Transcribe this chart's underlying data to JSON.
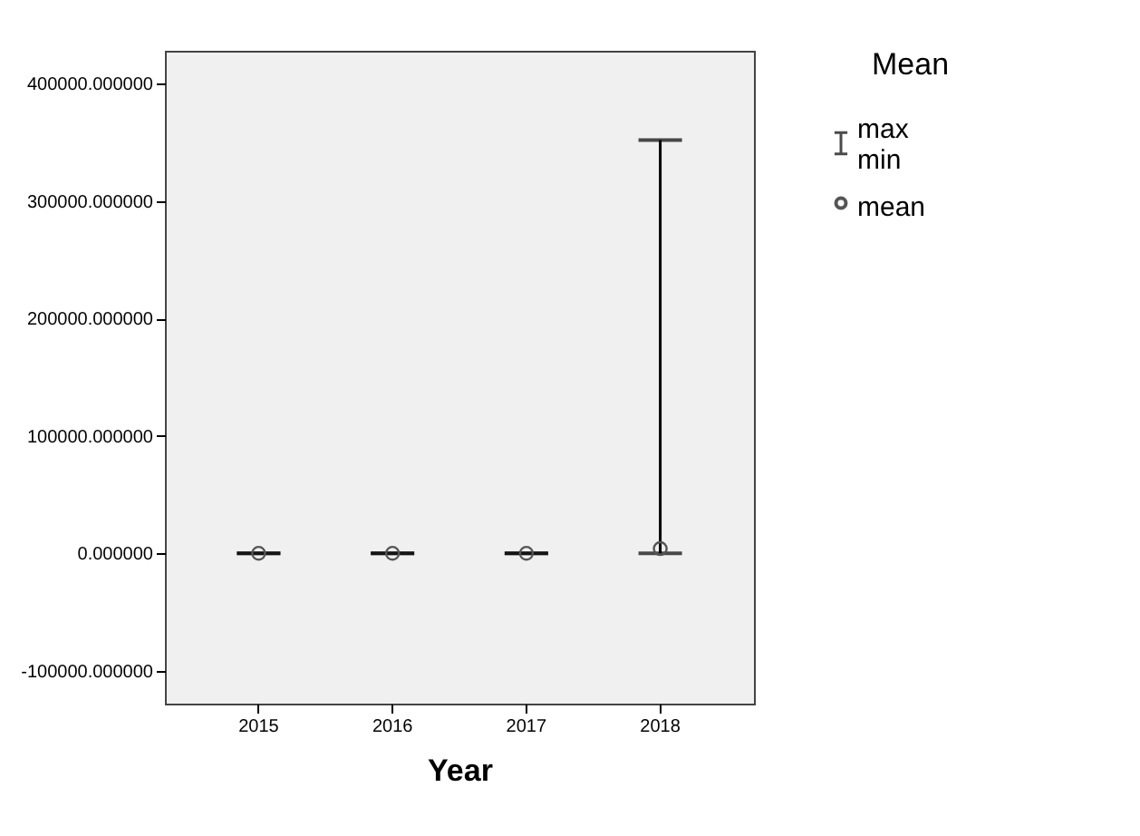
{
  "chart_data": {
    "type": "scatter",
    "xlabel": "Year",
    "categories": [
      "2015",
      "2016",
      "2017",
      "2018"
    ],
    "series": [
      {
        "name": "mean",
        "color": "#555555",
        "values": [
          0,
          0,
          0,
          4000
        ],
        "errors": [
          [
            0,
            0
          ],
          [
            0,
            0
          ],
          [
            0,
            0
          ],
          [
            0,
            352000
          ]
        ]
      }
    ],
    "legend_title": "Mean",
    "annotations": [
      "max\nmin"
    ],
    "legend": "right",
    "marker": "circle",
    "ylim": [
      -128000,
      428000
    ],
    "yticks": [
      {
        "value": -100000,
        "label": "-100000.000000"
      },
      {
        "value": 0,
        "label": "0.000000"
      },
      {
        "value": 100000,
        "label": "100000.000000"
      },
      {
        "value": 200000,
        "label": "200000.000000"
      },
      {
        "value": 300000,
        "label": "300000.000000"
      },
      {
        "value": 400000,
        "label": "400000.000000"
      }
    ],
    "grid": false
  }
}
